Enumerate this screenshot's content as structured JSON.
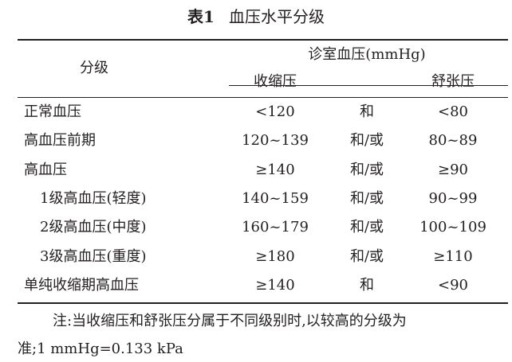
{
  "title": {
    "number": "表1",
    "text": "血压水平分级"
  },
  "header": {
    "category": "分级",
    "group": "诊室血压(mmHg)",
    "systolic": "收缩压",
    "diastolic": "舒张压"
  },
  "rows": [
    {
      "category": "正常血压",
      "indent": false,
      "systolic": "<120",
      "connector": "和",
      "diastolic": "<80"
    },
    {
      "category": "高血压前期",
      "indent": false,
      "systolic": "120~139",
      "connector": "和/或",
      "diastolic": "80~89"
    },
    {
      "category": "高血压",
      "indent": false,
      "systolic": "≥140",
      "connector": "和/或",
      "diastolic": "≥90"
    },
    {
      "category": "1级高血压(轻度)",
      "indent": true,
      "systolic": "140~159",
      "connector": "和/或",
      "diastolic": "90~99"
    },
    {
      "category": "2级高血压(中度)",
      "indent": true,
      "systolic": "160~179",
      "connector": "和/或",
      "diastolic": "100~109"
    },
    {
      "category": "3级高血压(重度)",
      "indent": true,
      "systolic": "≥180",
      "connector": "和/或",
      "diastolic": "≥110"
    },
    {
      "category": "单纯收缩期高血压",
      "indent": false,
      "systolic": "≥140",
      "connector": "和",
      "diastolic": "<90"
    }
  ],
  "note": {
    "line1": "注:当收缩压和舒张压分属于不同级别时,以较高的分级为",
    "line2": "准;1 mmHg=0.133 kPa"
  }
}
